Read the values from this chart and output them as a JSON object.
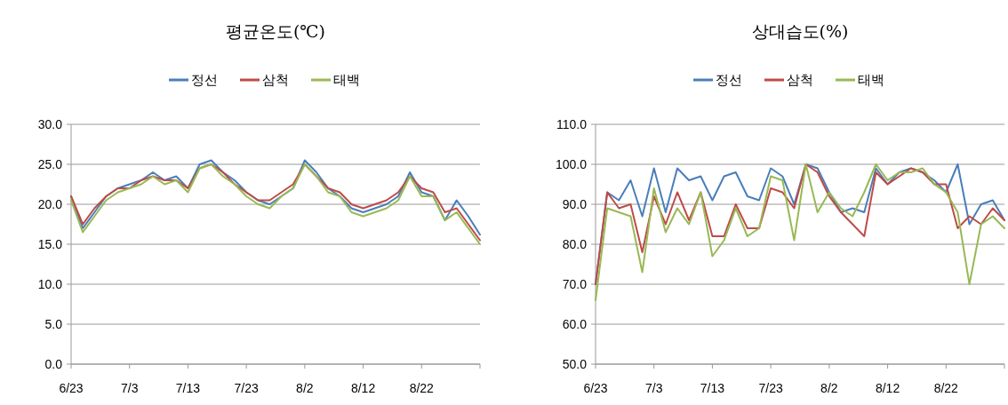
{
  "chart_data": [
    {
      "type": "line",
      "title": "평균온도(℃)",
      "x": [
        "--06-23",
        "--06-25",
        "--06-27",
        "--06-29",
        "--07-01",
        "--07-03",
        "--07-05",
        "--07-07",
        "--07-09",
        "--07-11",
        "--07-13",
        "--07-15",
        "--07-17",
        "--07-19",
        "--07-21",
        "--07-23",
        "--07-25",
        "--07-27",
        "--07-29",
        "--07-31",
        "--08-02",
        "--08-04",
        "--08-06",
        "--08-08",
        "--08-10",
        "--08-12",
        "--08-14",
        "--08-16",
        "--08-18",
        "--08-20",
        "--08-22",
        "--08-24",
        "--08-26",
        "--08-28",
        "--08-30",
        "--09-01"
      ],
      "series": [
        {
          "name": "정선",
          "color": "#4a7ebb",
          "values": [
            21,
            17,
            19,
            21,
            22,
            22.5,
            23,
            24,
            23,
            23.5,
            22,
            25,
            25.5,
            24,
            23,
            21.5,
            20.5,
            20,
            21,
            22,
            25.5,
            24,
            22,
            21,
            19.5,
            19,
            19.5,
            20,
            21,
            24,
            21.5,
            21,
            18,
            20.5,
            18.5,
            16.2
          ]
        },
        {
          "name": "삼척",
          "color": "#be4b48",
          "values": [
            21,
            17.5,
            19.5,
            21,
            22,
            22,
            23,
            23.5,
            23,
            23,
            22,
            24.5,
            25,
            24,
            22.5,
            21.5,
            20.5,
            20.5,
            21.5,
            22.5,
            25,
            23.5,
            22,
            21.5,
            20,
            19.5,
            20,
            20.5,
            21.5,
            23.5,
            22,
            21.5,
            19,
            19.5,
            17.5,
            15.5
          ]
        },
        {
          "name": "태백",
          "color": "#98b954",
          "values": [
            20.5,
            16.5,
            18.5,
            20.5,
            21.5,
            22,
            22.5,
            23.5,
            22.5,
            23,
            21.5,
            24.5,
            25,
            23.5,
            22.5,
            21,
            20,
            19.5,
            21,
            22,
            25,
            23.5,
            21.5,
            21,
            19,
            18.5,
            19,
            19.5,
            20.5,
            23.5,
            21,
            21,
            18,
            19,
            17,
            15
          ]
        }
      ],
      "xlim": [
        "--06-23",
        "--09-01"
      ],
      "xticks": [
        {
          "value": "--06-23",
          "label": "6/23"
        },
        {
          "value": "--07-03",
          "label": "7/3"
        },
        {
          "value": "--07-13",
          "label": "7/13"
        },
        {
          "value": "--07-23",
          "label": "7/23"
        },
        {
          "value": "--08-02",
          "label": "8/2"
        },
        {
          "value": "--08-12",
          "label": "8/12"
        },
        {
          "value": "--08-22",
          "label": "8/22"
        },
        {
          "value": "--09-01",
          "label": null
        }
      ],
      "ylim": [
        0,
        30
      ],
      "yticks": [
        {
          "value": 0,
          "label": "0.0"
        },
        {
          "value": 5,
          "label": "5.0"
        },
        {
          "value": 10,
          "label": "10.0"
        },
        {
          "value": 15,
          "label": "15.0"
        },
        {
          "value": 20,
          "label": "20.0"
        },
        {
          "value": 25,
          "label": "25.0"
        },
        {
          "value": 30,
          "label": "30.0"
        }
      ],
      "grid": "y",
      "legend": "top"
    },
    {
      "type": "line",
      "title": "상대습도(%)",
      "x": [
        "--06-23",
        "--06-25",
        "--06-27",
        "--06-29",
        "--07-01",
        "--07-03",
        "--07-05",
        "--07-07",
        "--07-09",
        "--07-11",
        "--07-13",
        "--07-15",
        "--07-17",
        "--07-19",
        "--07-21",
        "--07-23",
        "--07-25",
        "--07-27",
        "--07-29",
        "--07-31",
        "--08-02",
        "--08-04",
        "--08-06",
        "--08-08",
        "--08-10",
        "--08-12",
        "--08-14",
        "--08-16",
        "--08-18",
        "--08-20",
        "--08-22",
        "--08-24",
        "--08-26",
        "--08-28",
        "--08-30",
        "--09-01"
      ],
      "series": [
        {
          "name": "정선",
          "color": "#4a7ebb",
          "values": [
            70,
            93,
            91,
            96,
            87,
            99,
            88,
            99,
            96,
            97,
            91,
            97,
            98,
            92,
            91,
            99,
            97,
            90,
            100,
            99,
            93,
            88,
            89,
            88,
            99,
            95,
            98,
            99,
            98,
            96,
            93,
            100,
            85,
            90,
            91,
            86
          ]
        },
        {
          "name": "삼척",
          "color": "#be4b48",
          "values": [
            70,
            93,
            89,
            90,
            78,
            92,
            85,
            93,
            86,
            93,
            82,
            82,
            90,
            84,
            84,
            94,
            93,
            89,
            100,
            98,
            92,
            88,
            85,
            82,
            98,
            95,
            97,
            99,
            98,
            95,
            95,
            84,
            87,
            85,
            89,
            86
          ]
        },
        {
          "name": "태백",
          "color": "#98b954",
          "values": [
            66,
            89,
            88,
            87,
            73,
            94,
            83,
            89,
            85,
            93,
            77,
            81,
            89,
            82,
            84,
            97,
            96,
            81,
            100,
            88,
            93,
            89,
            87,
            93,
            100,
            96,
            98,
            98,
            99,
            95,
            93,
            88,
            70,
            85,
            87,
            84
          ]
        }
      ],
      "xlim": [
        "--06-23",
        "--09-01"
      ],
      "xticks": [
        {
          "value": "--06-23",
          "label": "6/23"
        },
        {
          "value": "--07-03",
          "label": "7/3"
        },
        {
          "value": "--07-13",
          "label": "7/13"
        },
        {
          "value": "--07-23",
          "label": "7/23"
        },
        {
          "value": "--08-02",
          "label": "8/2"
        },
        {
          "value": "--08-12",
          "label": "8/12"
        },
        {
          "value": "--08-22",
          "label": "8/22"
        },
        {
          "value": "--09-01",
          "label": null
        }
      ],
      "ylim": [
        50,
        110
      ],
      "yticks": [
        {
          "value": 50,
          "label": "50.0"
        },
        {
          "value": 60,
          "label": "60.0"
        },
        {
          "value": 70,
          "label": "70.0"
        },
        {
          "value": 80,
          "label": "80.0"
        },
        {
          "value": 90,
          "label": "90.0"
        },
        {
          "value": 100,
          "label": "100.0"
        },
        {
          "value": 110,
          "label": "110.0"
        }
      ],
      "grid": "y",
      "legend": "top"
    }
  ]
}
